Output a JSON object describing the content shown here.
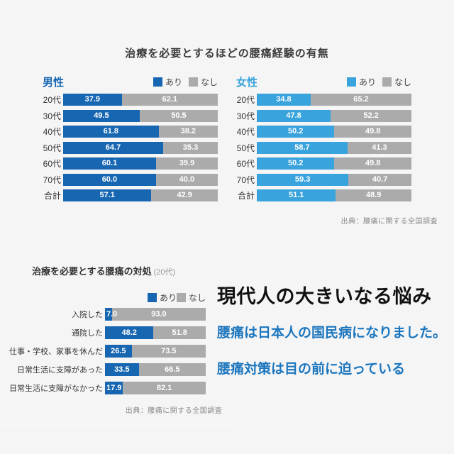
{
  "page": {
    "background": "#f5f5f6"
  },
  "colors": {
    "male_blue": "#1666b2",
    "female_blue": "#38a3dc",
    "bar_gray": "#ababab",
    "accent_text_blue": "#1b76be"
  },
  "top_section": {
    "title": "治療を必要とするほどの腰痛経験の有無",
    "male_label": "男性",
    "female_label": "女性",
    "legend_yes": "あり",
    "legend_no": "なし",
    "source": "出典：腰痛に関する全国調査"
  },
  "bottom_section": {
    "title": "治療を必要とする腰痛の対処",
    "title_suffix": "(20代)",
    "legend_yes": "あり",
    "legend_no": "なし",
    "source": "出典：腰痛に関する全国調査"
  },
  "message": {
    "headline": "現代人の大きいなる悩み",
    "line1": "腰痛は日本人の国民病になりました。",
    "line2": "腰痛対策は目の前に迫っている"
  },
  "chart_data": [
    {
      "id": "male",
      "type": "bar",
      "orientation": "horizontal-stacked",
      "title": "治療を必要とするほどの腰痛経験の有無",
      "group": "男性",
      "categories": [
        "20代",
        "30代",
        "40代",
        "50代",
        "60代",
        "70代",
        "合計"
      ],
      "series": [
        {
          "name": "あり",
          "color": "#1666b2",
          "values": [
            37.9,
            49.5,
            61.8,
            64.7,
            60.1,
            60.0,
            57.1
          ]
        },
        {
          "name": "なし",
          "color": "#ababab",
          "values": [
            62.1,
            50.5,
            38.2,
            35.3,
            39.9,
            40.0,
            42.9
          ]
        }
      ],
      "xlim": [
        0,
        100
      ],
      "unit": "%",
      "legend_position": "top-right"
    },
    {
      "id": "female",
      "type": "bar",
      "orientation": "horizontal-stacked",
      "title": "治療を必要とするほどの腰痛経験の有無",
      "group": "女性",
      "categories": [
        "20代",
        "30代",
        "40代",
        "50代",
        "60代",
        "70代",
        "合計"
      ],
      "series": [
        {
          "name": "あり",
          "color": "#38a3dc",
          "values": [
            34.8,
            47.8,
            50.2,
            58.7,
            50.2,
            59.3,
            51.1
          ]
        },
        {
          "name": "なし",
          "color": "#ababab",
          "values": [
            65.2,
            52.2,
            49.8,
            41.3,
            49.8,
            40.7,
            48.9
          ]
        }
      ],
      "xlim": [
        0,
        100
      ],
      "unit": "%",
      "legend_position": "top-right"
    },
    {
      "id": "coping",
      "type": "bar",
      "orientation": "horizontal-stacked",
      "title": "治療を必要とする腰痛の対処 (20代)",
      "categories": [
        "入院した",
        "通院した",
        "仕事・学校、家事を休んだ",
        "日常生活に支障があった",
        "日常生活に支障がなかった"
      ],
      "series": [
        {
          "name": "あり",
          "color": "#1666b2",
          "values": [
            7.0,
            48.2,
            26.5,
            33.5,
            17.9
          ]
        },
        {
          "name": "なし",
          "color": "#ababab",
          "values": [
            93.0,
            51.8,
            73.5,
            66.5,
            82.1
          ]
        }
      ],
      "xlim": [
        0,
        100
      ],
      "unit": "%",
      "legend_position": "top-right"
    }
  ]
}
